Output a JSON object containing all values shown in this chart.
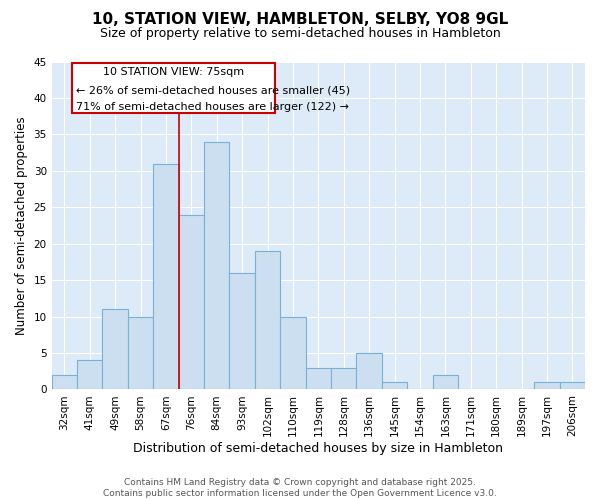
{
  "title": "10, STATION VIEW, HAMBLETON, SELBY, YO8 9GL",
  "subtitle": "Size of property relative to semi-detached houses in Hambleton",
  "xlabel": "Distribution of semi-detached houses by size in Hambleton",
  "ylabel": "Number of semi-detached properties",
  "categories": [
    "32sqm",
    "41sqm",
    "49sqm",
    "58sqm",
    "67sqm",
    "76sqm",
    "84sqm",
    "93sqm",
    "102sqm",
    "110sqm",
    "119sqm",
    "128sqm",
    "136sqm",
    "145sqm",
    "154sqm",
    "163sqm",
    "171sqm",
    "180sqm",
    "189sqm",
    "197sqm",
    "206sqm"
  ],
  "values": [
    2,
    4,
    11,
    10,
    31,
    24,
    34,
    16,
    19,
    10,
    3,
    3,
    5,
    1,
    0,
    2,
    0,
    0,
    0,
    1,
    1
  ],
  "bar_color": "#ccdff0",
  "bar_edge_color": "#7ab0d4",
  "annotation_line1": "10 STATION VIEW: 75sqm",
  "annotation_line2": "← 26% of semi-detached houses are smaller (45)",
  "annotation_line3": "71% of semi-detached houses are larger (122) →",
  "vline_index": 5,
  "annotation_color": "#cc0000",
  "ylim": [
    0,
    45
  ],
  "yticks": [
    0,
    5,
    10,
    15,
    20,
    25,
    30,
    35,
    40,
    45
  ],
  "fig_bg_color": "#ffffff",
  "plot_bg_color": "#ddeaf7",
  "grid_color": "#ffffff",
  "footer_line1": "Contains HM Land Registry data © Crown copyright and database right 2025.",
  "footer_line2": "Contains public sector information licensed under the Open Government Licence v3.0.",
  "title_fontsize": 11,
  "subtitle_fontsize": 9,
  "ylabel_fontsize": 8.5,
  "xlabel_fontsize": 9,
  "tick_fontsize": 7.5,
  "annotation_fontsize": 8,
  "footer_fontsize": 6.5
}
